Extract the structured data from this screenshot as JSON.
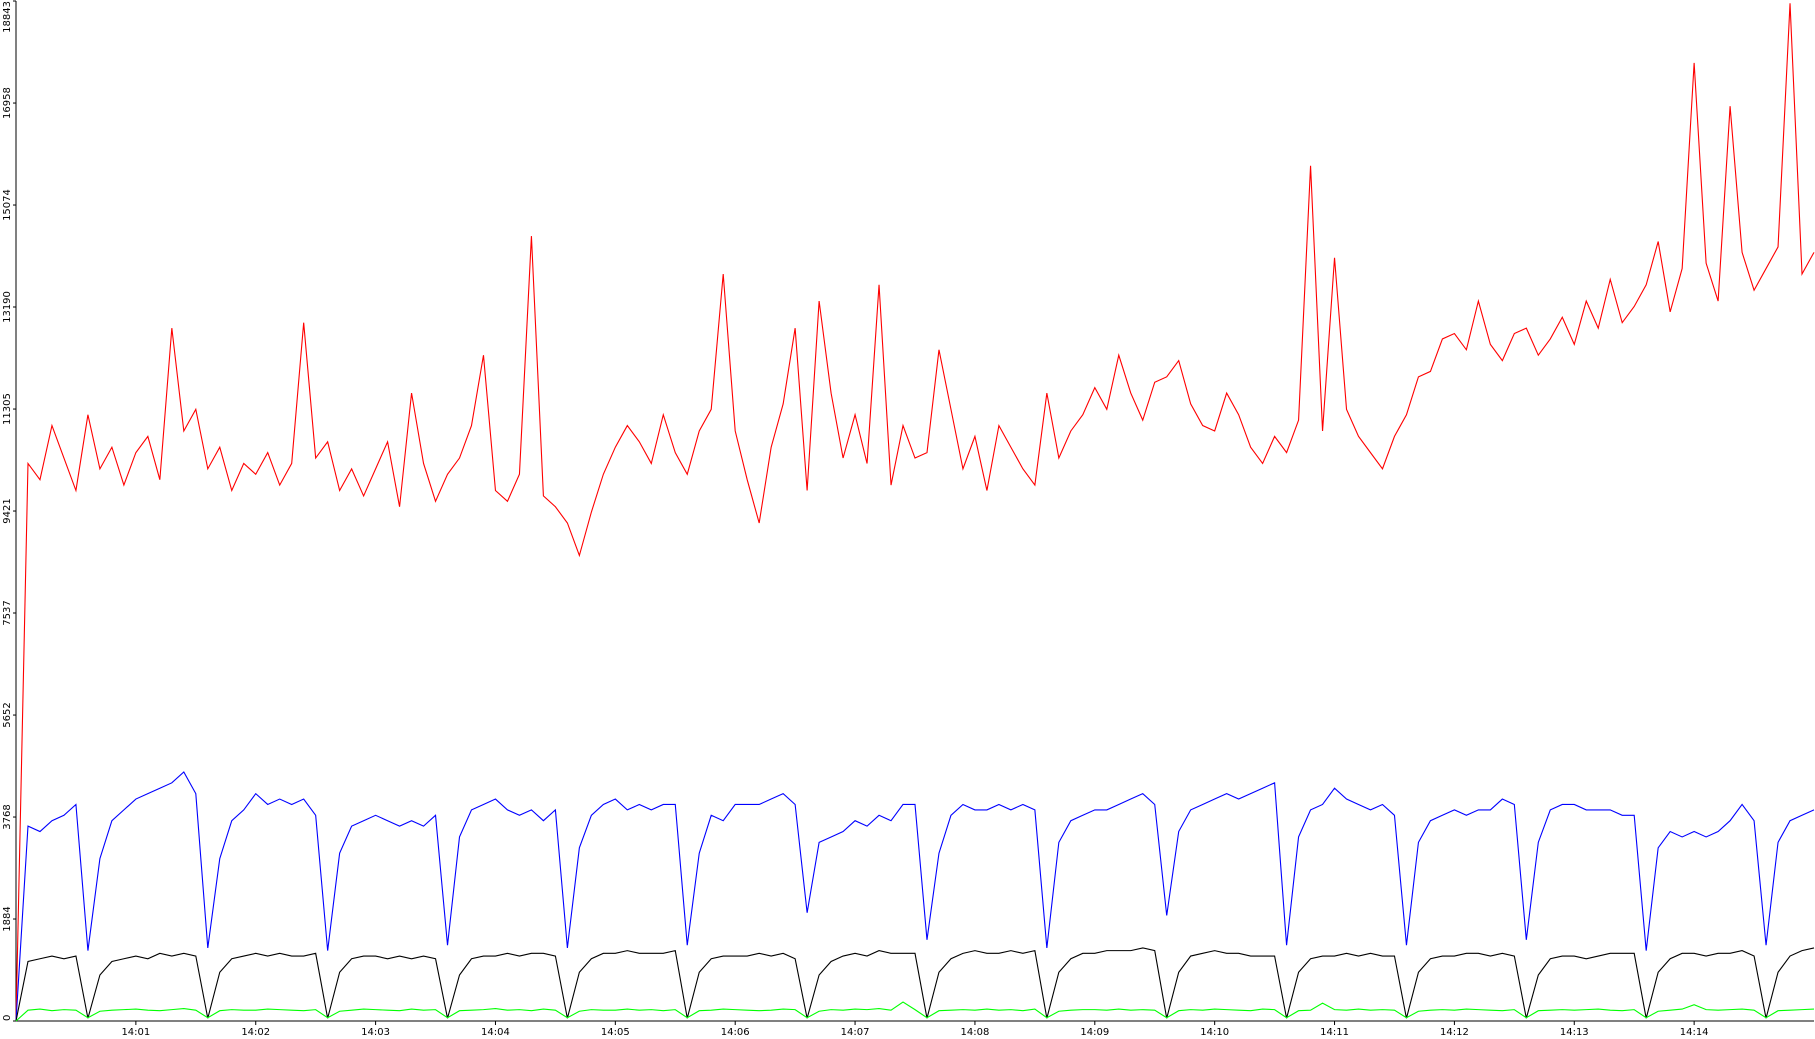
{
  "chart_data": {
    "type": "line",
    "x": [
      0,
      0.1,
      0.2,
      0.3,
      0.4,
      0.5,
      0.6,
      0.7,
      0.8,
      0.9,
      1,
      1.1,
      1.2,
      1.3,
      1.4,
      1.5,
      1.6,
      1.7,
      1.8,
      1.9,
      2,
      2.1,
      2.2,
      2.3,
      2.4,
      2.5,
      2.6,
      2.7,
      2.8,
      2.9,
      3,
      3.1,
      3.2,
      3.3,
      3.4,
      3.5,
      3.6,
      3.7,
      3.8,
      3.9,
      4,
      4.1,
      4.2,
      4.3,
      4.4,
      4.5,
      4.6,
      4.7,
      4.8,
      4.9,
      5,
      5.1,
      5.2,
      5.3,
      5.4,
      5.5,
      5.6,
      5.7,
      5.8,
      5.9,
      6,
      6.1,
      6.2,
      6.3,
      6.4,
      6.5,
      6.6,
      6.7,
      6.8,
      6.9,
      7,
      7.1,
      7.2,
      7.3,
      7.4,
      7.5,
      7.6,
      7.7,
      7.8,
      7.9,
      8,
      8.1,
      8.2,
      8.3,
      8.4,
      8.5,
      8.6,
      8.7,
      8.8,
      8.9,
      9,
      9.1,
      9.2,
      9.3,
      9.4,
      9.5,
      9.6,
      9.7,
      9.8,
      9.9,
      10,
      10.1,
      10.2,
      10.3,
      10.4,
      10.5,
      10.6,
      10.7,
      10.8,
      10.9,
      11,
      11.1,
      11.2,
      11.3,
      11.4,
      11.5,
      11.6,
      11.7,
      11.8,
      11.9,
      12,
      12.1,
      12.2,
      12.3,
      12.4,
      12.5,
      12.6,
      12.7,
      12.8,
      12.9,
      13,
      13.1,
      13.2,
      13.3,
      13.4,
      13.5,
      13.6,
      13.7,
      13.8,
      13.9,
      14,
      14.1,
      14.2,
      14.3,
      14.4,
      14.5,
      14.6,
      14.7,
      14.8,
      14.9,
      15
    ],
    "series": [
      {
        "color": "#ff0000",
        "values": [
          0,
          10300,
          10000,
          11000,
          10400,
          9800,
          11200,
          10200,
          10600,
          9900,
          10500,
          10800,
          10000,
          12800,
          10900,
          11300,
          10200,
          10600,
          9800,
          10300,
          10100,
          10500,
          9900,
          10300,
          12900,
          10400,
          10700,
          9800,
          10200,
          9700,
          10200,
          10700,
          9500,
          11600,
          10300,
          9600,
          10100,
          10400,
          11000,
          12300,
          9800,
          9600,
          10100,
          14500,
          9700,
          9500,
          9200,
          8600,
          9400,
          10100,
          10600,
          11000,
          10700,
          10300,
          11200,
          10500,
          10100,
          10900,
          11300,
          13800,
          10900,
          10000,
          9200,
          10600,
          11400,
          12800,
          9800,
          13300,
          11600,
          10400,
          11200,
          10300,
          13600,
          9900,
          11000,
          10400,
          10500,
          12400,
          11300,
          10200,
          10800,
          9800,
          11000,
          10600,
          10200,
          9900,
          11600,
          10400,
          10900,
          11200,
          11700,
          11300,
          12300,
          11600,
          11100,
          11800,
          11900,
          12200,
          11400,
          11000,
          10900,
          11600,
          11200,
          10600,
          10300,
          10800,
          10500,
          11100,
          15800,
          10900,
          14100,
          11300,
          10800,
          10500,
          10200,
          10800,
          11200,
          11900,
          12000,
          12600,
          12700,
          12400,
          13300,
          12500,
          12200,
          12700,
          12800,
          12300,
          12600,
          13000,
          12500,
          13300,
          12800,
          13700,
          12900,
          13200,
          13600,
          14400,
          13100,
          13900,
          17700,
          14000,
          13300,
          16900,
          14200,
          13500,
          13900,
          14300,
          18800,
          13800,
          14200
        ]
      },
      {
        "color": "#0000ff",
        "values": [
          0,
          3600,
          3500,
          3700,
          3800,
          4000,
          1300,
          3000,
          3700,
          3900,
          4100,
          4200,
          4300,
          4400,
          4600,
          4200,
          1350,
          3000,
          3700,
          3900,
          4200,
          4000,
          4100,
          4000,
          4100,
          3800,
          1300,
          3100,
          3600,
          3700,
          3800,
          3700,
          3600,
          3700,
          3600,
          3800,
          1400,
          3400,
          3900,
          4000,
          4100,
          3900,
          3800,
          3900,
          3700,
          3900,
          1350,
          3200,
          3800,
          4000,
          4100,
          3900,
          4000,
          3900,
          4000,
          4000,
          1400,
          3100,
          3800,
          3700,
          4000,
          4000,
          4000,
          4100,
          4200,
          4000,
          2000,
          3300,
          3400,
          3500,
          3700,
          3600,
          3800,
          3700,
          4000,
          4000,
          1500,
          3100,
          3800,
          4000,
          3900,
          3900,
          4000,
          3900,
          4000,
          3900,
          1350,
          3300,
          3700,
          3800,
          3900,
          3900,
          4000,
          4100,
          4200,
          4000,
          1950,
          3500,
          3900,
          4000,
          4100,
          4200,
          4100,
          4200,
          4300,
          4400,
          1400,
          3400,
          3900,
          4000,
          4300,
          4100,
          4000,
          3900,
          4000,
          3800,
          1400,
          3300,
          3700,
          3800,
          3900,
          3800,
          3900,
          3900,
          4100,
          4000,
          1500,
          3300,
          3900,
          4000,
          4000,
          3900,
          3900,
          3900,
          3800,
          3800,
          1300,
          3200,
          3500,
          3400,
          3500,
          3400,
          3500,
          3700,
          4000,
          3700,
          1400,
          3300,
          3700,
          3800,
          3900
        ]
      },
      {
        "color": "#000000",
        "values": [
          0,
          1100,
          1150,
          1200,
          1150,
          1200,
          50,
          850,
          1100,
          1150,
          1200,
          1150,
          1250,
          1200,
          1250,
          1200,
          50,
          900,
          1150,
          1200,
          1250,
          1200,
          1250,
          1200,
          1200,
          1250,
          50,
          900,
          1150,
          1200,
          1200,
          1150,
          1200,
          1150,
          1200,
          1150,
          50,
          850,
          1150,
          1200,
          1200,
          1250,
          1200,
          1250,
          1250,
          1200,
          50,
          900,
          1150,
          1250,
          1250,
          1300,
          1250,
          1250,
          1250,
          1300,
          50,
          900,
          1150,
          1200,
          1200,
          1200,
          1250,
          1200,
          1250,
          1150,
          50,
          850,
          1100,
          1200,
          1250,
          1200,
          1300,
          1250,
          1250,
          1250,
          50,
          900,
          1150,
          1250,
          1300,
          1250,
          1250,
          1300,
          1250,
          1300,
          50,
          900,
          1150,
          1250,
          1250,
          1300,
          1300,
          1300,
          1350,
          1300,
          50,
          900,
          1200,
          1250,
          1300,
          1250,
          1250,
          1200,
          1200,
          1200,
          50,
          900,
          1150,
          1200,
          1200,
          1250,
          1200,
          1250,
          1200,
          1200,
          50,
          900,
          1150,
          1200,
          1200,
          1250,
          1250,
          1200,
          1250,
          1200,
          50,
          850,
          1150,
          1200,
          1200,
          1150,
          1200,
          1250,
          1250,
          1250,
          50,
          900,
          1150,
          1250,
          1250,
          1200,
          1250,
          1250,
          1300,
          1200,
          50,
          900,
          1200,
          1300,
          1350
        ]
      },
      {
        "color": "#00ff00",
        "values": [
          0,
          200,
          220,
          190,
          210,
          200,
          60,
          180,
          200,
          210,
          220,
          200,
          190,
          210,
          230,
          200,
          60,
          190,
          210,
          200,
          200,
          220,
          210,
          200,
          190,
          210,
          60,
          180,
          200,
          220,
          210,
          200,
          190,
          220,
          200,
          210,
          60,
          190,
          200,
          210,
          230,
          200,
          210,
          190,
          220,
          200,
          60,
          180,
          210,
          200,
          200,
          220,
          200,
          210,
          190,
          210,
          60,
          190,
          200,
          220,
          210,
          200,
          190,
          200,
          220,
          210,
          60,
          180,
          210,
          200,
          220,
          210,
          230,
          200,
          350,
          210,
          60,
          190,
          200,
          210,
          200,
          220,
          200,
          210,
          190,
          220,
          60,
          180,
          200,
          210,
          210,
          200,
          220,
          200,
          210,
          200,
          60,
          190,
          210,
          200,
          220,
          210,
          200,
          190,
          220,
          210,
          60,
          190,
          200,
          330,
          210,
          200,
          220,
          200,
          210,
          200,
          60,
          180,
          200,
          210,
          200,
          220,
          210,
          200,
          190,
          210,
          60,
          190,
          200,
          210,
          200,
          210,
          220,
          200,
          190,
          210,
          60,
          180,
          200,
          220,
          300,
          210,
          200,
          210,
          220,
          200,
          60,
          190,
          200,
          210,
          220
        ]
      }
    ],
    "xlim": [
      0,
      15
    ],
    "xticks": [
      {
        "value": 1,
        "label": "14:01"
      },
      {
        "value": 2,
        "label": "14:02"
      },
      {
        "value": 3,
        "label": "14:03"
      },
      {
        "value": 4,
        "label": "14:04"
      },
      {
        "value": 5,
        "label": "14:05"
      },
      {
        "value": 6,
        "label": "14:06"
      },
      {
        "value": 7,
        "label": "14:07"
      },
      {
        "value": 8,
        "label": "14:08"
      },
      {
        "value": 9,
        "label": "14:09"
      },
      {
        "value": 10,
        "label": "14:10"
      },
      {
        "value": 11,
        "label": "14:11"
      },
      {
        "value": 12,
        "label": "14:12"
      },
      {
        "value": 13,
        "label": "14:13"
      },
      {
        "value": 14,
        "label": "14:14"
      }
    ],
    "ylim": [
      0,
      18843
    ],
    "yticks": [
      0,
      1884,
      3768,
      5652,
      7537,
      9421,
      11305,
      13190,
      15074,
      16958,
      18843
    ],
    "grid": false
  }
}
